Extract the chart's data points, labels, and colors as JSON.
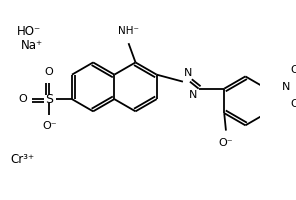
{
  "bg_color": "#ffffff",
  "line_color": "#000000",
  "lw": 1.3,
  "figsize": [
    2.96,
    2.0
  ],
  "dpi": 100,
  "xlim": [
    0,
    296
  ],
  "ylim": [
    0,
    200
  ]
}
